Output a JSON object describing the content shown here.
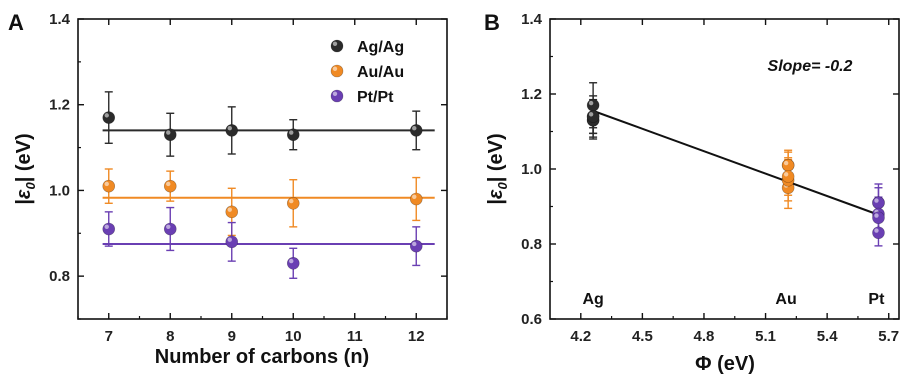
{
  "chart_data": [
    {
      "panel": "A",
      "type": "scatter",
      "xlabel": "Number of carbons (n)",
      "ylabel": "|ε0| (eV)",
      "xlim": [
        6.5,
        12.5
      ],
      "ylim": [
        0.7,
        1.4
      ],
      "xticks": [
        "7",
        "8",
        "9",
        "10",
        "11",
        "12"
      ],
      "yticks": [
        "0.8",
        "1.0",
        "1.2",
        "1.4"
      ],
      "legend": "top-right",
      "series": [
        {
          "name": "Ag/Ag",
          "color": "#2b2b2b",
          "fit": 1.14,
          "x": [
            7,
            8,
            9,
            10,
            12
          ],
          "y": [
            1.17,
            1.13,
            1.14,
            1.13,
            1.14
          ],
          "err": [
            0.06,
            0.05,
            0.055,
            0.035,
            0.045
          ]
        },
        {
          "name": "Au/Au",
          "color": "#f08a24",
          "fit": 0.983,
          "x": [
            7,
            8,
            9,
            10,
            12
          ],
          "y": [
            1.01,
            1.01,
            0.95,
            0.97,
            0.98
          ],
          "err": [
            0.04,
            0.035,
            0.055,
            0.055,
            0.05
          ]
        },
        {
          "name": "Pt/Pt",
          "color": "#6a3fb3",
          "fit": 0.875,
          "x": [
            7,
            8,
            9,
            10,
            12
          ],
          "y": [
            0.91,
            0.91,
            0.88,
            0.83,
            0.87
          ],
          "err": [
            0.04,
            0.05,
            0.045,
            0.035,
            0.045
          ]
        }
      ]
    },
    {
      "panel": "B",
      "type": "scatter",
      "xlabel": "Φ (eV)",
      "ylabel": "|ε0| (eV)",
      "xlim": [
        4.05,
        5.75
      ],
      "ylim": [
        0.6,
        1.4
      ],
      "xticks": [
        "4.2",
        "4.5",
        "4.8",
        "5.1",
        "5.4",
        "5.7"
      ],
      "yticks": [
        "0.6",
        "0.8",
        "1.0",
        "1.2",
        "1.4"
      ],
      "annotation": "Slope= -0.2",
      "metal_labels": [
        {
          "text": "Ag",
          "x": 4.26
        },
        {
          "text": "Au",
          "x": 5.2
        },
        {
          "text": "Pt",
          "x": 5.64
        }
      ],
      "fit_line": {
        "x": [
          4.26,
          5.64
        ],
        "y": [
          1.155,
          0.88
        ]
      },
      "series": [
        {
          "name": "Ag",
          "color": "#2b2b2b",
          "x": [
            4.26,
            4.26,
            4.26,
            4.26,
            4.26
          ],
          "y": [
            1.17,
            1.13,
            1.14,
            1.13,
            1.14
          ],
          "err": [
            0.06,
            0.05,
            0.055,
            0.035,
            0.045
          ]
        },
        {
          "name": "Au",
          "color": "#f08a24",
          "x": [
            5.21,
            5.21,
            5.21,
            5.21,
            5.21
          ],
          "y": [
            1.01,
            1.01,
            0.95,
            0.97,
            0.98
          ],
          "err": [
            0.04,
            0.035,
            0.055,
            0.055,
            0.05
          ]
        },
        {
          "name": "Pt",
          "color": "#6a3fb3",
          "x": [
            5.65,
            5.65,
            5.65,
            5.65,
            5.65
          ],
          "y": [
            0.91,
            0.91,
            0.88,
            0.83,
            0.87
          ],
          "err": [
            0.04,
            0.05,
            0.045,
            0.035,
            0.045
          ]
        }
      ]
    }
  ]
}
